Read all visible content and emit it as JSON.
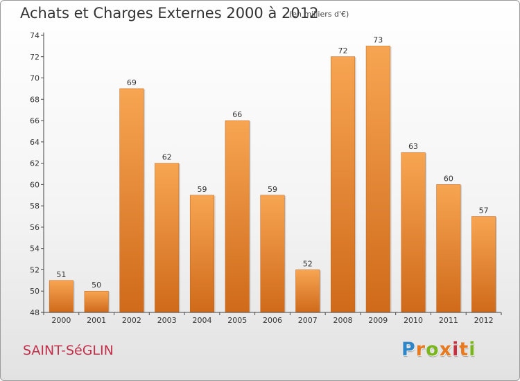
{
  "header": {
    "title": "Achats et Charges Externes 2000 à 2012",
    "unit": "(en milliers d'€)"
  },
  "footer": {
    "place": "SAINT-SéGLIN",
    "logo": {
      "letters": [
        "P",
        "r",
        "o",
        "x",
        "i",
        "t",
        "i"
      ],
      "colors": [
        "#2e86c9",
        "#e8791f",
        "#7ab51d",
        "#e8791f",
        "#c9303f",
        "#e8791f",
        "#7ab51d"
      ]
    }
  },
  "colors": {
    "bar_light": "#f7a552",
    "bar_dark": "#cf6a1a",
    "axis": "#444444",
    "grid": "#dddddd"
  },
  "chart_data": {
    "type": "bar",
    "title": "Achats et Charges Externes 2000 à 2012",
    "xlabel": "",
    "ylabel": "",
    "categories": [
      "2000",
      "2001",
      "2002",
      "2003",
      "2004",
      "2005",
      "2006",
      "2007",
      "2008",
      "2009",
      "2010",
      "2011",
      "2012"
    ],
    "values": [
      51,
      50,
      69,
      62,
      59,
      66,
      59,
      52,
      72,
      73,
      63,
      60,
      57
    ],
    "ylim": [
      48,
      74
    ],
    "yticks": [
      48,
      50,
      52,
      54,
      56,
      58,
      60,
      62,
      64,
      66,
      68,
      70,
      72,
      74
    ],
    "grid": false,
    "data_labels": true
  }
}
